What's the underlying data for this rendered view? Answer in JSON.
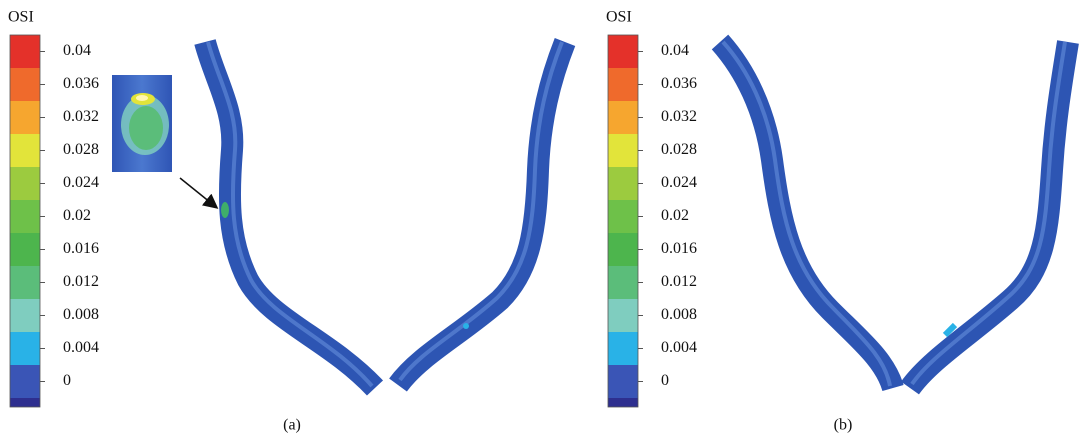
{
  "panels": [
    {
      "legend_title": "OSI",
      "legend_ticks": [
        "0.04",
        "0.036",
        "0.032",
        "0.028",
        "0.024",
        "0.02",
        "0.016",
        "0.012",
        "0.008",
        "0.004",
        "0"
      ],
      "caption": "(a)"
    },
    {
      "legend_title": "OSI",
      "legend_ticks": [
        "0.04",
        "0.036",
        "0.032",
        "0.028",
        "0.024",
        "0.02",
        "0.016",
        "0.012",
        "0.008",
        "0.004",
        "0"
      ],
      "caption": "(b)"
    }
  ],
  "legend_colors": [
    "#e4312a",
    "#ef6a2c",
    "#f6a62f",
    "#e2e43a",
    "#9ccb3f",
    "#6ec149",
    "#4db54d",
    "#5bbd7a",
    "#7fcdbf",
    "#29b2e7",
    "#3a55b6",
    "#2e2f8f"
  ]
}
